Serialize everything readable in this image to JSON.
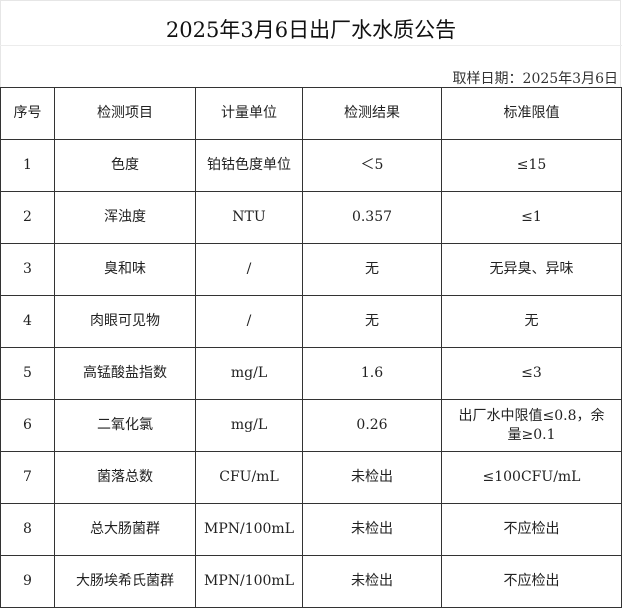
{
  "title": "2025年3月6日出厂水水质公告",
  "sampling_date": "取样日期：2025年3月6日",
  "table": {
    "headers": [
      "序号",
      "检测项目",
      "计量单位",
      "检测结果",
      "标准限值"
    ],
    "rows": [
      [
        "1",
        "色度",
        "铂钴色度单位",
        "＜5",
        "≤15"
      ],
      [
        "2",
        "浑浊度",
        "NTU",
        "0.357",
        "≤1"
      ],
      [
        "3",
        "臭和味",
        "/",
        "无",
        "无异臭、异味"
      ],
      [
        "4",
        "肉眼可见物",
        "/",
        "无",
        "无"
      ],
      [
        "5",
        "高锰酸盐指数",
        "mg/L",
        "1.6",
        "≤3"
      ],
      [
        "6",
        "二氧化氯",
        "mg/L",
        "0.26",
        "出厂水中限值≤0.8，余量≥0.1"
      ],
      [
        "7",
        "菌落总数",
        "CFU/mL",
        "未检出",
        "≤100CFU/mL"
      ],
      [
        "8",
        "总大肠菌群",
        "MPN/100mL",
        "未检出",
        "不应检出"
      ],
      [
        "9",
        "大肠埃希氏菌群",
        "MPN/100mL",
        "未检出",
        "不应检出"
      ]
    ]
  }
}
